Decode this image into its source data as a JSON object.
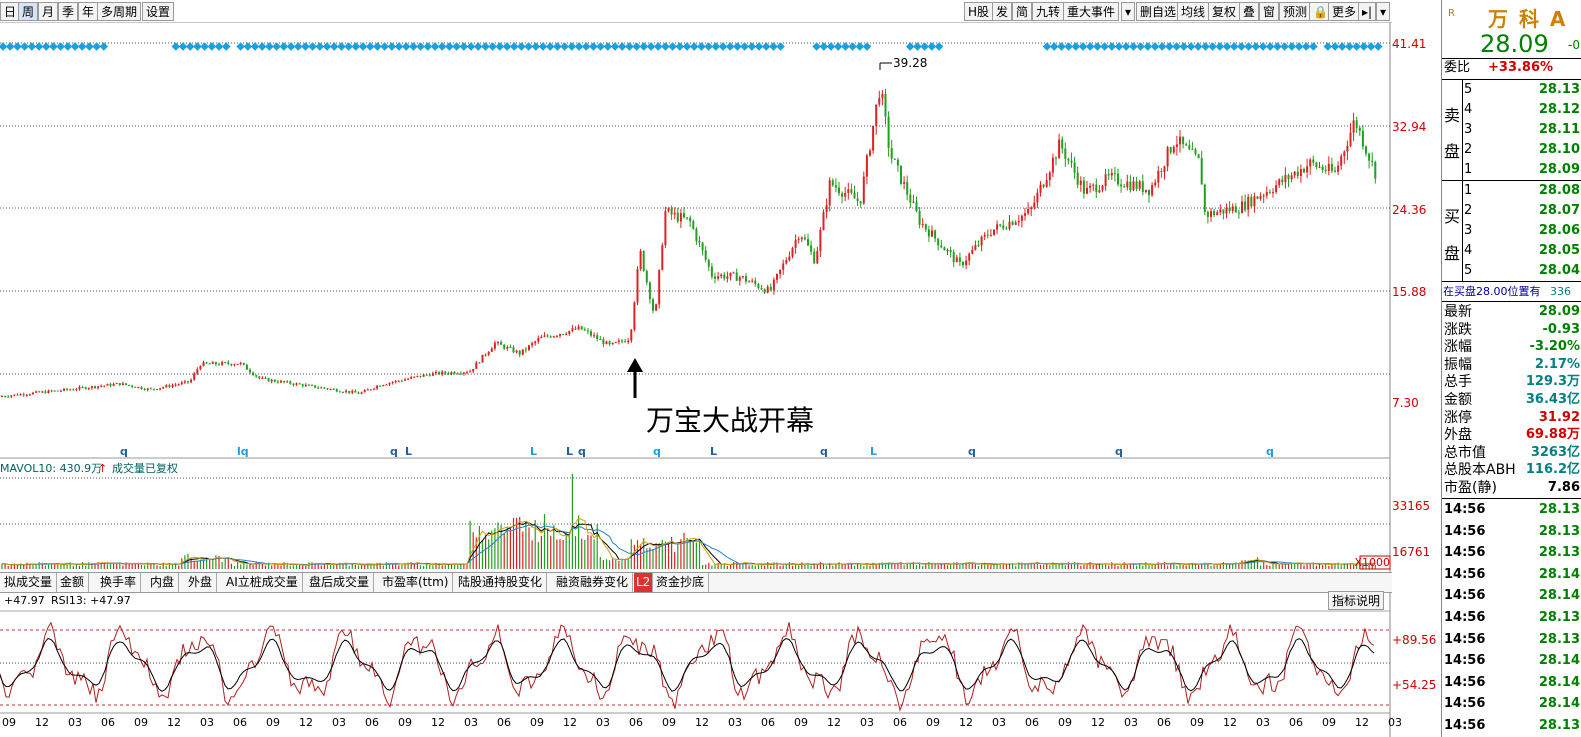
{
  "toolbar_left": [
    "日",
    "周",
    "月",
    "季",
    "年",
    "多周期",
    "设置"
  ],
  "toolbar_right": [
    "H股",
    "发",
    "简",
    "九转",
    "重大事件",
    "▾",
    "删自选",
    "均线",
    "复权",
    "叠",
    "窗",
    "预测",
    "🔒",
    "更多",
    "▸|",
    "▾"
  ],
  "main_chart": {
    "price_ticks": [
      "41.41",
      "32.94",
      "24.36",
      "15.88",
      "7.30"
    ],
    "high_marker": "39.28",
    "annotation": "万宝大战开幕",
    "event_marks": [
      "q",
      "lq",
      "q",
      "L",
      "L",
      "L",
      "q",
      "q",
      "L",
      "q",
      "L",
      "q",
      "q",
      "q"
    ]
  },
  "volume_panel": {
    "legend": "MAVOL10: 430.9万",
    "legend_arrow": "↑",
    "legend_note": "成交量已复权",
    "ticks": [
      "33165",
      "16761"
    ],
    "multiplier": "X1000"
  },
  "indicator_tabs": [
    "拟成交量",
    "金额",
    "换手率",
    "内盘",
    "外盘",
    "AI立桩成交量",
    "盘后成交量",
    "市盈率(ttm)",
    "陆股通持股变化",
    "融资融券变化",
    "L2",
    "资金抄底"
  ],
  "rsi_panel": {
    "legend_1": "+47.97",
    "legend_2": "RSI13: +47.97",
    "help_button": "指标说明",
    "ticks": [
      "+89.56",
      "+54.25"
    ]
  },
  "date_axis": [
    "09",
    "12",
    "03",
    "06",
    "09",
    "12",
    "03",
    "06",
    "09",
    "12",
    "03",
    "06",
    "09",
    "12",
    "03",
    "06",
    "09",
    "12",
    "03",
    "06",
    "09",
    "12",
    "03",
    "06",
    "09",
    "12",
    "03",
    "06",
    "09",
    "12",
    "03",
    "06",
    "09",
    "12",
    "03",
    "06",
    "09",
    "12",
    "03",
    "06",
    "09",
    "12",
    "03"
  ],
  "quote": {
    "logo": "R",
    "name": "万 科 A",
    "price": "28.09",
    "change_small": "-0",
    "weibi_label": "委比",
    "weibi_value": "+33.86%",
    "sell_label_1": "卖",
    "sell_label_2": "盘",
    "buy_label_1": "买",
    "buy_label_2": "盘",
    "sell": [
      {
        "n": "5",
        "p": "28.13"
      },
      {
        "n": "4",
        "p": "28.12"
      },
      {
        "n": "3",
        "p": "28.11"
      },
      {
        "n": "2",
        "p": "28.10"
      },
      {
        "n": "1",
        "p": "28.09"
      }
    ],
    "buy": [
      {
        "n": "1",
        "p": "28.08"
      },
      {
        "n": "2",
        "p": "28.07"
      },
      {
        "n": "3",
        "p": "28.06"
      },
      {
        "n": "4",
        "p": "28.05"
      },
      {
        "n": "5",
        "p": "28.04"
      }
    ],
    "notice": "在买盘28.00位置有",
    "notice_num": "336",
    "stats": [
      {
        "k": "最新",
        "v": "28.09",
        "c": "#008000"
      },
      {
        "k": "涨跌",
        "v": "-0.93",
        "c": "#008000"
      },
      {
        "k": "涨幅",
        "v": "-3.20%",
        "c": "#008000"
      },
      {
        "k": "振幅",
        "v": "2.17%",
        "c": "#008080"
      },
      {
        "k": "总手",
        "v": "129.3万",
        "c": "#008080"
      },
      {
        "k": "金额",
        "v": "36.43亿",
        "c": "#008080"
      },
      {
        "k": "涨停",
        "v": "31.92",
        "c": "#d00000"
      },
      {
        "k": "外盘",
        "v": "69.88万",
        "c": "#d00000"
      },
      {
        "k": "总市值",
        "v": "3263亿",
        "c": "#008080"
      },
      {
        "k": "总股本ABH",
        "v": "116.2亿",
        "c": "#008080"
      },
      {
        "k": "市盈(静)",
        "v": "7.86",
        "c": "#000000"
      }
    ],
    "ticks_time": "14:56",
    "ticks": [
      "28.13",
      "28.13",
      "28.13",
      "28.14",
      "28.14",
      "28.13",
      "28.13",
      "28.14",
      "28.14",
      "28.14",
      "28.13"
    ]
  }
}
